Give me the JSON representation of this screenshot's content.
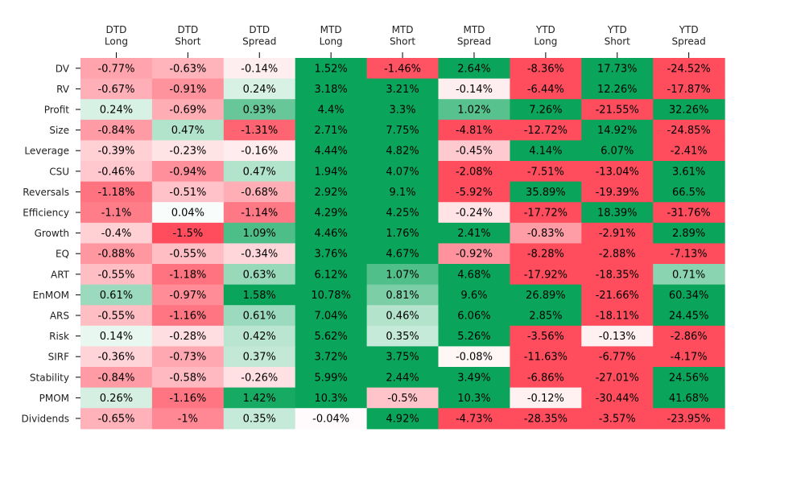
{
  "chart_data": {
    "type": "heatmap",
    "title": "",
    "xlabel": "",
    "ylabel": "",
    "x_labels": [
      [
        "DTD",
        "Long"
      ],
      [
        "DTD",
        "Short"
      ],
      [
        "DTD",
        "Spread"
      ],
      [
        "MTD",
        "Long"
      ],
      [
        "MTD",
        "Short"
      ],
      [
        "MTD",
        "Spread"
      ],
      [
        "YTD",
        "Long"
      ],
      [
        "YTD",
        "Short"
      ],
      [
        "YTD",
        "Spread"
      ]
    ],
    "x_axis_position": "top",
    "y_labels": [
      "DV",
      "RV",
      "Profit",
      "Size",
      "Leverage",
      "CSU",
      "Reversals",
      "Efficiency",
      "Growth",
      "EQ",
      "ART",
      "EnMOM",
      "ARS",
      "Risk",
      "SIRF",
      "Stability",
      "PMOM",
      "Dividends"
    ],
    "values": [
      [
        -0.77,
        -0.63,
        -0.14,
        1.52,
        -1.46,
        2.64,
        -8.36,
        17.73,
        -24.52
      ],
      [
        -0.67,
        -0.91,
        0.24,
        3.18,
        3.21,
        -0.14,
        -6.44,
        12.26,
        -17.87
      ],
      [
        0.24,
        -0.69,
        0.93,
        4.4,
        3.3,
        1.02,
        7.26,
        -21.55,
        32.26
      ],
      [
        -0.84,
        0.47,
        -1.31,
        2.71,
        7.75,
        -4.81,
        -12.72,
        14.92,
        -24.85
      ],
      [
        -0.39,
        -0.23,
        -0.16,
        4.44,
        4.82,
        -0.45,
        4.14,
        6.07,
        -2.41
      ],
      [
        -0.46,
        -0.94,
        0.47,
        1.94,
        4.07,
        -2.08,
        -7.51,
        -13.04,
        3.61
      ],
      [
        -1.18,
        -0.51,
        -0.68,
        2.92,
        9.1,
        -5.92,
        35.89,
        -19.39,
        66.5
      ],
      [
        -1.1,
        0.04,
        -1.14,
        4.29,
        4.25,
        -0.24,
        -17.72,
        18.39,
        -31.76
      ],
      [
        -0.4,
        -1.5,
        1.09,
        4.46,
        1.76,
        2.41,
        -0.83,
        -2.91,
        2.89
      ],
      [
        -0.88,
        -0.55,
        -0.34,
        3.76,
        4.67,
        -0.92,
        -8.28,
        -2.88,
        -7.13
      ],
      [
        -0.55,
        -1.18,
        0.63,
        6.12,
        1.07,
        4.68,
        -17.92,
        -18.35,
        0.71
      ],
      [
        0.61,
        -0.97,
        1.58,
        10.78,
        0.81,
        9.6,
        26.89,
        -21.66,
        60.34
      ],
      [
        -0.55,
        -1.16,
        0.61,
        7.04,
        0.46,
        6.06,
        2.85,
        -18.11,
        24.45
      ],
      [
        0.14,
        -0.28,
        0.42,
        5.62,
        0.35,
        5.26,
        -3.56,
        -0.13,
        -2.86
      ],
      [
        -0.36,
        -0.73,
        0.37,
        3.72,
        3.75,
        -0.08,
        -11.63,
        -6.77,
        -4.17
      ],
      [
        -0.84,
        -0.58,
        -0.26,
        5.99,
        2.44,
        3.49,
        -6.86,
        -27.01,
        24.56
      ],
      [
        0.26,
        -1.16,
        1.42,
        10.3,
        -0.5,
        10.3,
        -0.12,
        -30.44,
        41.68
      ],
      [
        -0.65,
        -1.0,
        0.35,
        -0.04,
        4.92,
        -4.73,
        -28.35,
        -3.57,
        -23.95
      ]
    ],
    "value_suffix": "%",
    "color_scale": {
      "negative": "#ff4d5e",
      "neutral": "#ffffff",
      "positive": "#0aa55a",
      "limits": [
        -1.5,
        1.5
      ]
    },
    "grid": false,
    "legend": "none"
  }
}
